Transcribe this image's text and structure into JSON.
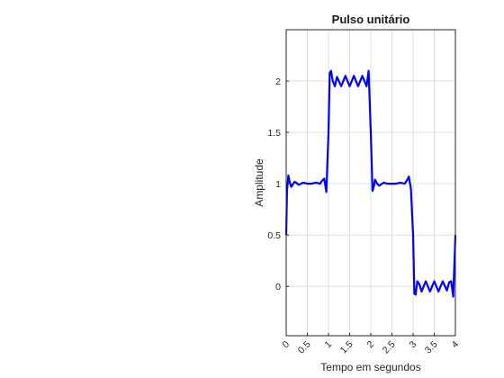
{
  "chart_data": {
    "type": "line",
    "title": "Pulso unitário",
    "xlabel": "Tempo em segundos",
    "ylabel": "Amplitude",
    "xlim": [
      0,
      4
    ],
    "ylim": [
      -0.48,
      2.5
    ],
    "grid": true,
    "x_ticks": [
      0,
      0.5,
      1,
      1.5,
      2,
      2.5,
      3,
      3.5,
      4
    ],
    "x_tick_labels": [
      "0",
      "0.5",
      "1",
      "1.5",
      "2",
      "2.5",
      "3",
      "3.5",
      "4"
    ],
    "y_ticks": [
      0,
      0.5,
      1,
      1.5,
      2
    ],
    "y_tick_labels": [
      "0",
      "0.5",
      "1",
      "1.5",
      "2"
    ],
    "series": [
      {
        "color": "#0000ff",
        "description": "Fourier series approximation of a pulse signal with Gibbs ringing",
        "x": [
          0,
          0.02,
          0.05,
          0.08,
          0.12,
          0.2,
          0.3,
          0.4,
          0.5,
          0.6,
          0.7,
          0.8,
          0.85,
          0.9,
          0.95,
          1.0,
          1.03,
          1.06,
          1.1,
          1.15,
          1.2,
          1.3,
          1.4,
          1.5,
          1.6,
          1.7,
          1.8,
          1.9,
          1.95,
          2.0,
          2.04,
          2.07,
          2.1,
          2.15,
          2.2,
          2.3,
          2.4,
          2.5,
          2.6,
          2.7,
          2.8,
          2.85,
          2.9,
          2.95,
          3.0,
          3.03,
          3.06,
          3.1,
          3.15,
          3.2,
          3.3,
          3.4,
          3.5,
          3.6,
          3.7,
          3.8,
          3.85,
          3.9,
          3.95,
          4.0
        ],
        "y": [
          0.5,
          0.93,
          1.08,
          1.02,
          0.97,
          1.02,
          0.99,
          1.01,
          1.0,
          1.0,
          1.01,
          1.0,
          1.03,
          1.05,
          0.92,
          1.5,
          2.08,
          2.1,
          2.0,
          1.95,
          2.04,
          1.95,
          2.05,
          1.95,
          2.05,
          1.95,
          2.05,
          1.95,
          2.1,
          1.5,
          0.93,
          0.97,
          1.04,
          1.0,
          0.98,
          1.01,
          1.0,
          1.0,
          1.0,
          1.01,
          1.0,
          1.03,
          1.07,
          0.95,
          0.5,
          -0.07,
          -0.08,
          0.05,
          0.02,
          -0.05,
          0.05,
          -0.05,
          0.05,
          -0.05,
          0.05,
          -0.04,
          0.04,
          0.05,
          -0.1,
          0.5
        ]
      }
    ]
  }
}
